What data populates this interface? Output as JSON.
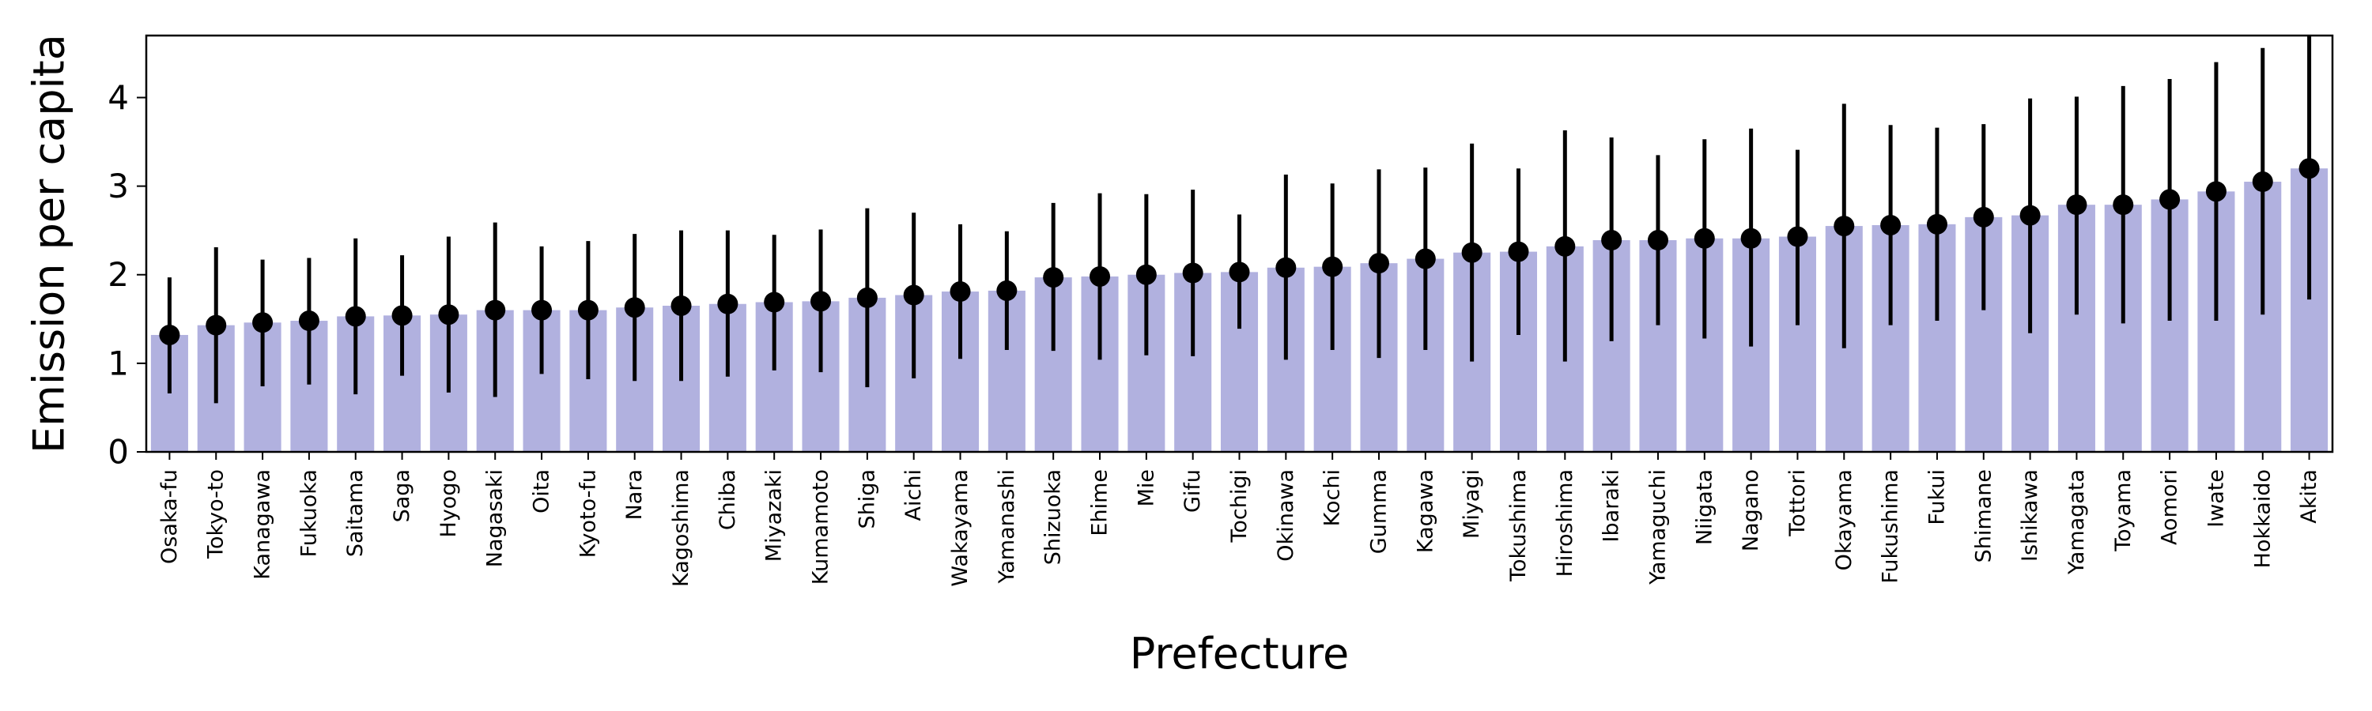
{
  "chart_data": {
    "type": "bar",
    "title": "",
    "xlabel": "Prefecture",
    "ylabel": "Emission per capita",
    "ylim": [
      0,
      4.7
    ],
    "yticks": [
      0,
      1,
      2,
      3,
      4
    ],
    "grid": false,
    "colors": {
      "bar": "#b1b1df",
      "marker": "#000000",
      "errorbar": "#000000"
    },
    "categories": [
      "Osaka-fu",
      "Tokyo-to",
      "Kanagawa",
      "Fukuoka",
      "Saitama",
      "Saga",
      "Hyogo",
      "Nagasaki",
      "Oita",
      "Kyoto-fu",
      "Nara",
      "Kagoshima",
      "Chiba",
      "Miyazaki",
      "Kumamoto",
      "Shiga",
      "Aichi",
      "Wakayama",
      "Yamanashi",
      "Shizuoka",
      "Ehime",
      "Mie",
      "Gifu",
      "Tochigi",
      "Okinawa",
      "Kochi",
      "Gumma",
      "Kagawa",
      "Miyagi",
      "Tokushima",
      "Hiroshima",
      "Ibaraki",
      "Yamaguchi",
      "Niigata",
      "Nagano",
      "Tottori",
      "Okayama",
      "Fukushima",
      "Fukui",
      "Shimane",
      "Ishikawa",
      "Yamagata",
      "Toyama",
      "Aomori",
      "Iwate",
      "Hokkaido",
      "Akita"
    ],
    "values": [
      1.32,
      1.43,
      1.46,
      1.48,
      1.53,
      1.54,
      1.55,
      1.6,
      1.6,
      1.6,
      1.63,
      1.65,
      1.67,
      1.69,
      1.7,
      1.74,
      1.77,
      1.81,
      1.82,
      1.97,
      1.98,
      2.0,
      2.02,
      2.03,
      2.08,
      2.09,
      2.13,
      2.18,
      2.25,
      2.26,
      2.32,
      2.39,
      2.39,
      2.41,
      2.41,
      2.43,
      2.55,
      2.56,
      2.57,
      2.65,
      2.67,
      2.79,
      2.79,
      2.85,
      2.94,
      3.05,
      3.2
    ],
    "error_low": [
      0.66,
      0.55,
      0.74,
      0.76,
      0.65,
      0.86,
      0.67,
      0.62,
      0.88,
      0.82,
      0.8,
      0.8,
      0.85,
      0.92,
      0.9,
      0.73,
      0.83,
      1.05,
      1.15,
      1.14,
      1.04,
      1.09,
      1.08,
      1.39,
      1.04,
      1.15,
      1.06,
      1.15,
      1.02,
      1.32,
      1.02,
      1.25,
      1.43,
      1.28,
      1.19,
      1.43,
      1.17,
      1.43,
      1.48,
      1.6,
      1.34,
      1.55,
      1.45,
      1.48,
      1.48,
      1.55,
      1.72
    ],
    "error_high": [
      1.97,
      2.31,
      2.17,
      2.19,
      2.41,
      2.22,
      2.43,
      2.59,
      2.32,
      2.38,
      2.46,
      2.5,
      2.5,
      2.45,
      2.51,
      2.75,
      2.7,
      2.57,
      2.49,
      2.81,
      2.92,
      2.91,
      2.96,
      2.68,
      3.13,
      3.03,
      3.19,
      3.21,
      3.48,
      3.2,
      3.63,
      3.55,
      3.35,
      3.53,
      3.65,
      3.41,
      3.93,
      3.69,
      3.66,
      3.7,
      3.99,
      4.01,
      4.13,
      4.21,
      4.4,
      4.56,
      4.72
    ]
  }
}
